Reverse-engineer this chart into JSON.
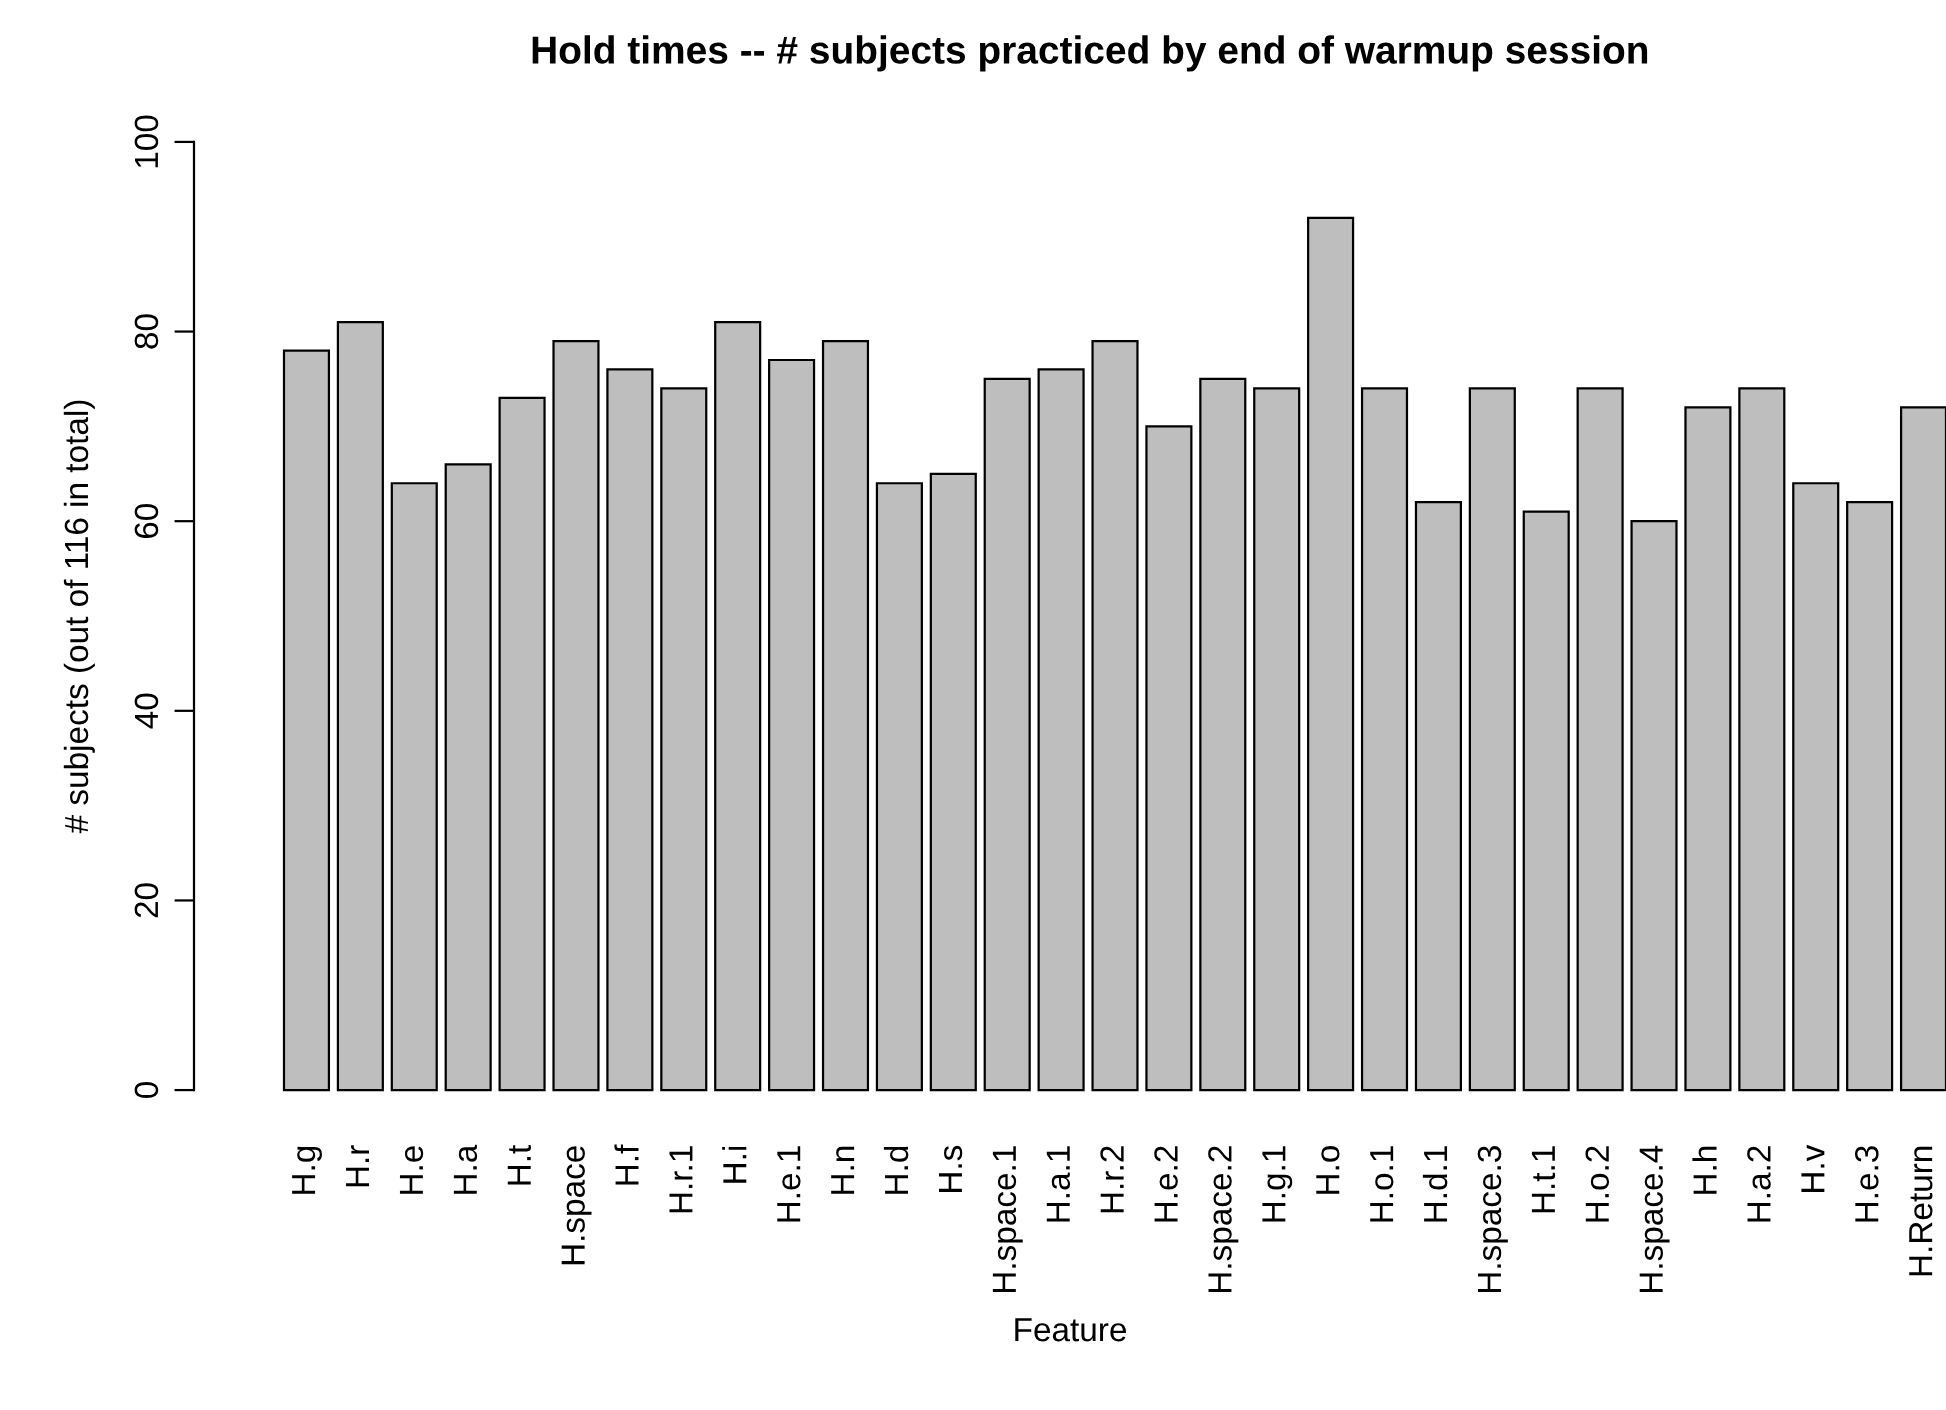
{
  "chart_data": {
    "type": "bar",
    "title": "Hold times -- # subjects practiced by end of warmup session",
    "xlabel": "Feature",
    "ylabel": "# subjects (out of 116 in total)",
    "categories": [
      "H.g",
      "H.r",
      "H.e",
      "H.a",
      "H.t",
      "H.space",
      "H.f",
      "H.r.1",
      "H.i",
      "H.e.1",
      "H.n",
      "H.d",
      "H.s",
      "H.space.1",
      "H.a.1",
      "H.r.2",
      "H.e.2",
      "H.space.2",
      "H.g.1",
      "H.o",
      "H.o.1",
      "H.d.1",
      "H.space.3",
      "H.t.1",
      "H.o.2",
      "H.space.4",
      "H.h",
      "H.a.2",
      "H.v",
      "H.e.3",
      "H.Return"
    ],
    "values": [
      78,
      81,
      64,
      66,
      73,
      79,
      76,
      74,
      81,
      77,
      79,
      64,
      65,
      75,
      76,
      79,
      70,
      75,
      74,
      92,
      74,
      62,
      74,
      61,
      74,
      60,
      72,
      74,
      64,
      62,
      72
    ],
    "color": "#bebebe",
    "ylim": [
      0,
      100
    ],
    "yticks": [
      0,
      20,
      40,
      60,
      80,
      100
    ],
    "grid": false,
    "legend": false
  }
}
